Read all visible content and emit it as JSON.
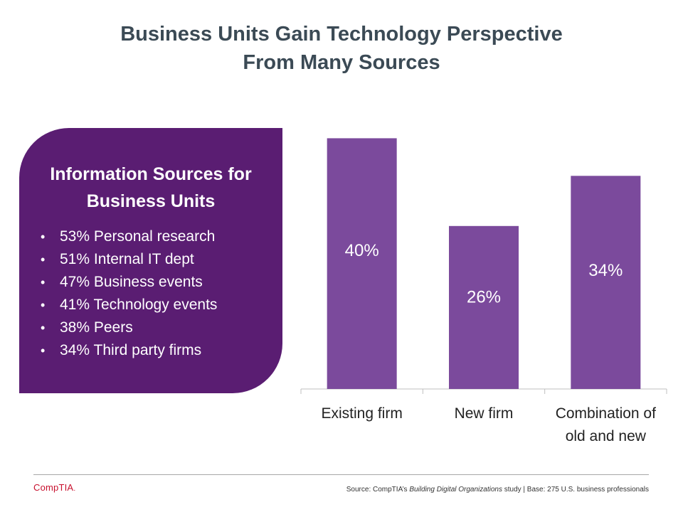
{
  "title": {
    "line1": "Business Units Gain Technology Perspective",
    "line2": "From Many Sources"
  },
  "panel": {
    "heading_line1": "Information Sources for",
    "heading_line2": "Business Units",
    "bullet_glyph": "•",
    "items": [
      "53% Personal research",
      "51% Internal IT dept",
      "47% Business events",
      "41% Technology events",
      "38% Peers",
      "34% Third party firms"
    ]
  },
  "chart_data": {
    "type": "bar",
    "categories": [
      "Existing firm",
      "New firm",
      "Combination of old and new"
    ],
    "category_lines": [
      [
        "Existing firm"
      ],
      [
        "New firm"
      ],
      [
        "Combination of",
        "old and new"
      ]
    ],
    "values": [
      40,
      26,
      34
    ],
    "value_labels": [
      "40%",
      "26%",
      "34%"
    ],
    "title": "",
    "xlabel": "",
    "ylabel": "",
    "ylim": [
      0,
      40.5
    ],
    "grid": false,
    "bar_color": "#7b4a9c",
    "label_color": "#ffffff",
    "axis_color": "#bfbfbf"
  },
  "footer": {
    "logo_text": "CompTIA",
    "logo_dot": ".",
    "source_prefix": "Source: CompTIA’s ",
    "source_study": "Building Digital Organizations",
    "source_suffix": " study | Base: 275 U.S. business professionals",
    "brand_color": "#c8102e"
  }
}
